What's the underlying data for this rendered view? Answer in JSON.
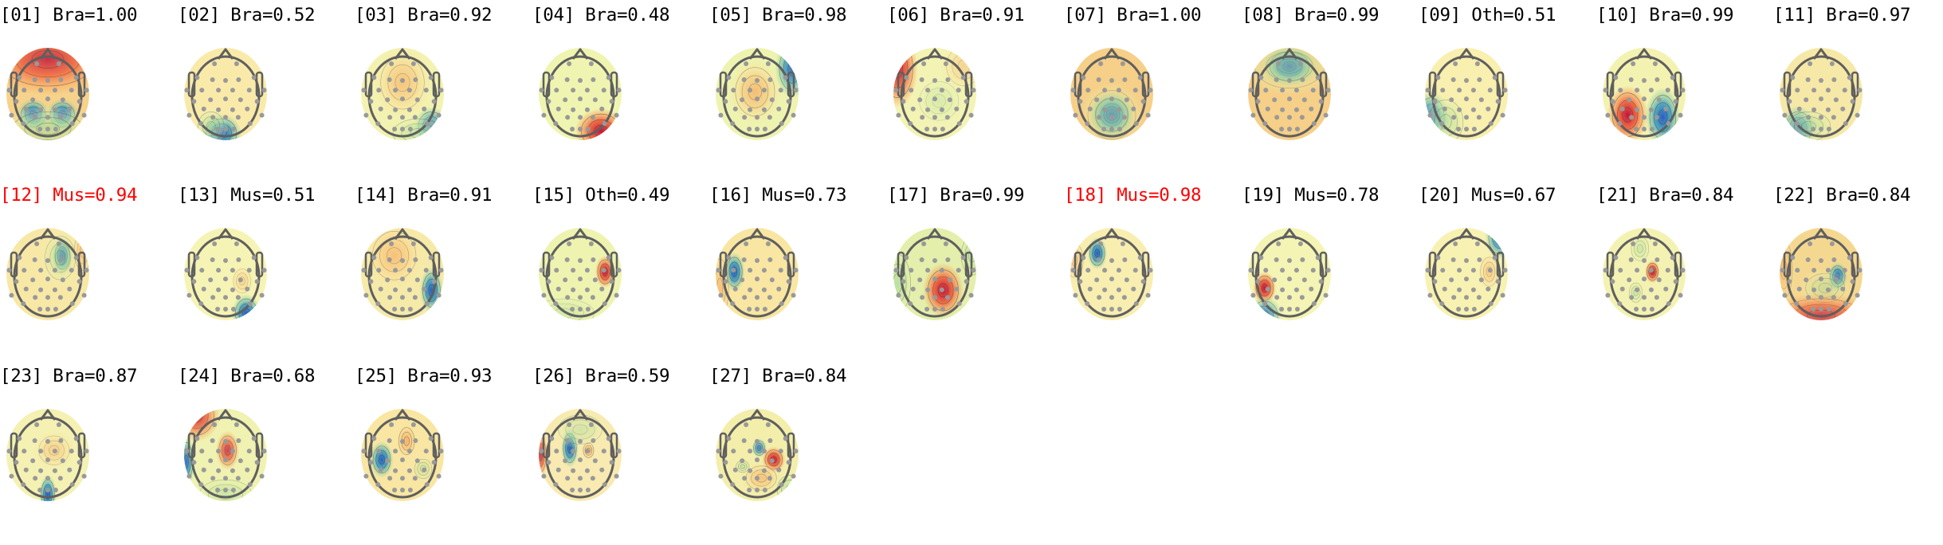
{
  "chart_data": {
    "type": "heatmap",
    "title": "",
    "description": "Grid of 27 scalp topographic maps (ICA components) with classifier label and probability",
    "colormap": "Spectral_r (blue=negative, yellow=neutral, red=positive)",
    "highlight_color": "#ff0000",
    "layout": {
      "rows": 3,
      "cols": 11
    },
    "components": [
      {
        "index": "01",
        "label": "Bra",
        "prob": "1.00",
        "flag": false,
        "bg": "#f7d28a",
        "blobs": [
          [
            0.0,
            -0.75,
            1.1,
            0.55,
            "r",
            0.85
          ],
          [
            -0.35,
            0.45,
            0.28,
            0.25,
            "b",
            1
          ],
          [
            0.35,
            0.45,
            0.28,
            0.25,
            "b",
            1
          ],
          [
            0,
            0.75,
            0.8,
            0.35,
            "g",
            0.7
          ]
        ]
      },
      {
        "index": "02",
        "label": "Bra",
        "prob": "0.52",
        "flag": false,
        "bg": "#faeaaa",
        "blobs": [
          [
            -0.1,
            0.85,
            0.35,
            0.3,
            "b",
            1
          ],
          [
            -0.35,
            0.7,
            0.3,
            0.3,
            "g",
            0.6
          ]
        ]
      },
      {
        "index": "03",
        "label": "Bra",
        "prob": "0.92",
        "flag": false,
        "bg": "#f3f2b0",
        "blobs": [
          [
            0,
            -0.25,
            0.5,
            0.55,
            "o",
            0.6
          ],
          [
            0.7,
            0.7,
            0.3,
            0.3,
            "b",
            0.9
          ],
          [
            0.4,
            0.85,
            0.6,
            0.3,
            "g",
            0.6
          ]
        ]
      },
      {
        "index": "04",
        "label": "Bra",
        "prob": "0.48",
        "flag": false,
        "bg": "#eff5b0",
        "blobs": [
          [
            0.5,
            0.8,
            0.45,
            0.35,
            "r",
            1
          ]
        ]
      },
      {
        "index": "05",
        "label": "Bra",
        "prob": "0.98",
        "flag": false,
        "bg": "#eef3b0",
        "blobs": [
          [
            -0.05,
            -0.05,
            0.45,
            0.5,
            "o",
            0.7
          ],
          [
            0.85,
            -0.55,
            0.3,
            0.45,
            "b",
            0.9
          ]
        ]
      },
      {
        "index": "06",
        "label": "Bra",
        "prob": "0.91",
        "flag": false,
        "bg": "#f3f3b4",
        "blobs": [
          [
            -0.9,
            -0.55,
            0.35,
            0.6,
            "r",
            0.95
          ],
          [
            0.7,
            -0.6,
            0.4,
            0.4,
            "o",
            0.4
          ],
          [
            0.1,
            0.15,
            0.45,
            0.4,
            "g",
            0.35
          ]
        ]
      },
      {
        "index": "07",
        "label": "Bra",
        "prob": "1.00",
        "flag": false,
        "bg": "#f6cf88",
        "blobs": [
          [
            0,
            0.45,
            0.38,
            0.35,
            "b",
            1
          ],
          [
            0,
            0.45,
            0.55,
            0.5,
            "g",
            0.5
          ]
        ]
      },
      {
        "index": "08",
        "label": "Bra",
        "prob": "0.99",
        "flag": false,
        "bg": "#f6cf88",
        "blobs": [
          [
            0,
            -0.6,
            0.45,
            0.3,
            "b",
            1
          ],
          [
            0,
            -0.6,
            0.8,
            0.45,
            "g",
            0.5
          ]
        ]
      },
      {
        "index": "09",
        "label": "Oth",
        "prob": "0.51",
        "flag": false,
        "bg": "#f9efae",
        "blobs": [
          [
            -0.85,
            0.5,
            0.3,
            0.4,
            "b",
            0.9
          ],
          [
            -0.5,
            0.6,
            0.4,
            0.45,
            "g",
            0.6
          ]
        ]
      },
      {
        "index": "10",
        "label": "Bra",
        "prob": "0.99",
        "flag": false,
        "bg": "#f3f2b0",
        "blobs": [
          [
            -0.4,
            0.45,
            0.35,
            0.45,
            "r",
            1
          ],
          [
            0.45,
            0.5,
            0.3,
            0.45,
            "b",
            1
          ]
        ]
      },
      {
        "index": "11",
        "label": "Bra",
        "prob": "0.97",
        "flag": false,
        "bg": "#f6e8a6",
        "blobs": [
          [
            -0.55,
            0.75,
            0.3,
            0.35,
            "b",
            1
          ],
          [
            -0.3,
            0.7,
            0.5,
            0.3,
            "g",
            0.6
          ]
        ]
      },
      {
        "index": "12",
        "label": "Mus",
        "prob": "0.94",
        "flag": true,
        "bg": "#f8e8a6",
        "blobs": [
          [
            0.35,
            -0.4,
            0.17,
            0.28,
            "b",
            1
          ],
          [
            0.3,
            -0.35,
            0.35,
            0.45,
            "g",
            0.5
          ],
          [
            0.85,
            -0.5,
            0.2,
            0.4,
            "o",
            0.5
          ]
        ]
      },
      {
        "index": "13",
        "label": "Mus",
        "prob": "0.51",
        "flag": false,
        "bg": "#f6f4b4",
        "blobs": [
          [
            0.5,
            0.85,
            0.25,
            0.3,
            "b",
            1
          ],
          [
            0.4,
            0.15,
            0.2,
            0.25,
            "o",
            0.4
          ]
        ]
      },
      {
        "index": "14",
        "label": "Bra",
        "prob": "0.91",
        "flag": false,
        "bg": "#f6eaa8",
        "blobs": [
          [
            -0.2,
            -0.4,
            0.5,
            0.5,
            "o",
            0.6
          ],
          [
            0.7,
            0.35,
            0.2,
            0.35,
            "b",
            1
          ]
        ]
      },
      {
        "index": "15",
        "label": "Oth",
        "prob": "0.49",
        "flag": false,
        "bg": "#eef3b0",
        "blobs": [
          [
            0.6,
            -0.05,
            0.17,
            0.25,
            "r",
            1
          ],
          [
            -0.4,
            0.85,
            0.7,
            0.3,
            "g",
            0.4
          ]
        ]
      },
      {
        "index": "16",
        "label": "Mus",
        "prob": "0.73",
        "flag": false,
        "bg": "#f8e6a2",
        "blobs": [
          [
            -0.55,
            -0.05,
            0.18,
            0.3,
            "b",
            1
          ],
          [
            -0.9,
            0.3,
            0.2,
            0.6,
            "o",
            0.6
          ]
        ]
      },
      {
        "index": "17",
        "label": "Bra",
        "prob": "0.99",
        "flag": false,
        "bg": "#e3efaa",
        "blobs": [
          [
            0.2,
            0.35,
            0.35,
            0.42,
            "r",
            1
          ],
          [
            -0.9,
            0.2,
            0.3,
            0.6,
            "g",
            0.7
          ],
          [
            0.9,
            -0.4,
            0.25,
            0.4,
            "g",
            0.6
          ]
        ]
      },
      {
        "index": "18",
        "label": "Mus",
        "prob": "0.98",
        "flag": true,
        "bg": "#f8eeb0",
        "blobs": [
          [
            -0.35,
            -0.45,
            0.17,
            0.25,
            "b",
            1
          ],
          [
            -0.9,
            -0.3,
            0.2,
            0.35,
            "o",
            0.5
          ]
        ]
      },
      {
        "index": "19",
        "label": "Mus",
        "prob": "0.78",
        "flag": false,
        "bg": "#f4f4b4",
        "blobs": [
          [
            -0.6,
            0.3,
            0.2,
            0.25,
            "r",
            1
          ],
          [
            -0.6,
            0.9,
            0.3,
            0.3,
            "b",
            0.8
          ]
        ]
      },
      {
        "index": "20",
        "label": "Mus",
        "prob": "0.67",
        "flag": false,
        "bg": "#f8f2b2",
        "blobs": [
          [
            0.8,
            -0.8,
            0.25,
            0.35,
            "b",
            0.9
          ],
          [
            0.55,
            -0.05,
            0.2,
            0.3,
            "o",
            0.5
          ]
        ]
      },
      {
        "index": "21",
        "label": "Bra",
        "prob": "0.84",
        "flag": false,
        "bg": "#f4f2b2",
        "blobs": [
          [
            0.2,
            -0.05,
            0.13,
            0.18,
            "r",
            1
          ],
          [
            -0.1,
            -0.55,
            0.2,
            0.25,
            "g",
            0.5
          ],
          [
            -0.2,
            0.4,
            0.15,
            0.2,
            "g",
            0.5
          ]
        ]
      },
      {
        "index": "22",
        "label": "Bra",
        "prob": "0.84",
        "flag": false,
        "bg": "#f5d890",
        "blobs": [
          [
            0.4,
            0.05,
            0.17,
            0.22,
            "b",
            1
          ],
          [
            0.1,
            0.3,
            0.45,
            0.3,
            "g",
            0.5
          ],
          [
            0,
            0.9,
            0.95,
            0.35,
            "r",
            0.75
          ],
          [
            -0.9,
            -0.1,
            0.2,
            0.6,
            "o",
            0.5
          ]
        ]
      },
      {
        "index": "23",
        "label": "Bra",
        "prob": "0.87",
        "flag": false,
        "bg": "#f4f1b2",
        "blobs": [
          [
            0,
            0.85,
            0.15,
            0.3,
            "b",
            1
          ],
          [
            0.15,
            -0.1,
            0.35,
            0.3,
            "o",
            0.45
          ]
        ]
      },
      {
        "index": "24",
        "label": "Bra",
        "prob": "0.68",
        "flag": false,
        "bg": "#eff2b0",
        "blobs": [
          [
            -0.7,
            -0.85,
            0.4,
            0.4,
            "r",
            0.85
          ],
          [
            0.05,
            -0.1,
            0.2,
            0.3,
            "r",
            0.8
          ],
          [
            -0.95,
            0.15,
            0.15,
            0.4,
            "b",
            0.9
          ],
          [
            0,
            0.85,
            0.6,
            0.3,
            "g",
            0.5
          ]
        ]
      },
      {
        "index": "25",
        "label": "Bra",
        "prob": "0.93",
        "flag": false,
        "bg": "#f8e6a2",
        "blobs": [
          [
            -0.5,
            0.1,
            0.2,
            0.28,
            "b",
            1
          ],
          [
            0.1,
            -0.3,
            0.18,
            0.28,
            "o",
            0.8
          ],
          [
            0.5,
            0.3,
            0.2,
            0.2,
            "g",
            0.5
          ]
        ]
      },
      {
        "index": "26",
        "label": "Bra",
        "prob": "0.59",
        "flag": false,
        "bg": "#f8eab0",
        "blobs": [
          [
            -0.25,
            -0.15,
            0.15,
            0.3,
            "b",
            1
          ],
          [
            0.2,
            -0.1,
            0.12,
            0.15,
            "o",
            0.8
          ],
          [
            -0.95,
            0,
            0.12,
            0.35,
            "r",
            0.8
          ],
          [
            0,
            -0.55,
            0.5,
            0.3,
            "g",
            0.45
          ]
        ]
      },
      {
        "index": "27",
        "label": "Bra",
        "prob": "0.84",
        "flag": false,
        "bg": "#f3eeaa",
        "blobs": [
          [
            0.4,
            0.1,
            0.2,
            0.2,
            "r",
            1
          ],
          [
            0.05,
            -0.15,
            0.13,
            0.15,
            "b",
            0.8
          ],
          [
            0.1,
            0.5,
            0.35,
            0.25,
            "o",
            0.6
          ],
          [
            -0.35,
            0.25,
            0.15,
            0.12,
            "g",
            0.6
          ],
          [
            0.8,
            0.75,
            0.3,
            0.3,
            "g",
            0.7
          ]
        ]
      }
    ]
  }
}
